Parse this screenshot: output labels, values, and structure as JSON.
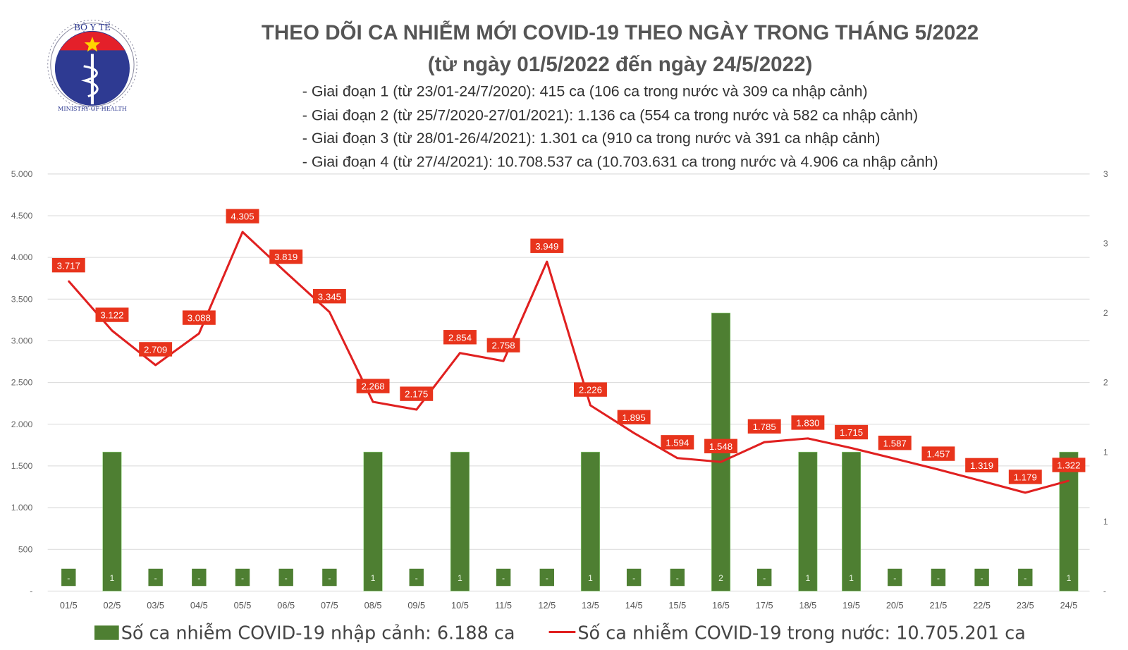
{
  "logo": {
    "top_text": "BỘ Y TẾ",
    "bottom_text": "MINISTRY OF HEALTH"
  },
  "header": {
    "title": "THEO DÕI CA NHIỄM MỚI COVID-19 THEO NGÀY TRONG THÁNG 5/2022",
    "subtitle": "(từ ngày 01/5/2022 đến ngày 24/5/2022)",
    "stages": [
      "- Giai đoạn 1 (từ 23/01-24/7/2020): 415 ca (106 ca trong nước và 309 ca nhập cảnh)",
      "- Giai đoạn 2 (từ 25/7/2020-27/01/2021): 1.136 ca (554 ca trong nước và 582 ca nhập cảnh)",
      "- Giai đoạn 3 (từ 28/01-26/4/2021): 1.301 ca (910 ca trong nước và 391 ca nhập cảnh)",
      "- Giai đoạn 4 (từ 27/4/2021): 10.708.537 ca (10.703.631 ca trong nước và 4.906 ca nhập cảnh)"
    ]
  },
  "chart_data": {
    "type": "bar+line",
    "categories": [
      "01/5",
      "02/5",
      "03/5",
      "04/5",
      "05/5",
      "06/5",
      "07/5",
      "08/5",
      "09/5",
      "10/5",
      "11/5",
      "12/5",
      "13/5",
      "14/5",
      "15/5",
      "16/5",
      "17/5",
      "18/5",
      "19/5",
      "20/5",
      "21/5",
      "22/5",
      "23/5",
      "24/5"
    ],
    "series": [
      {
        "name": "Số ca nhiễm COVID-19 nhập cảnh: 6.188 ca",
        "type": "bar",
        "axis": "right",
        "color": "#4e7f32",
        "values": [
          0,
          1,
          0,
          0,
          0,
          0,
          0,
          1,
          0,
          1,
          0,
          0,
          1,
          0,
          0,
          2,
          0,
          1,
          1,
          0,
          0,
          0,
          0,
          1
        ],
        "labels": [
          "-",
          "1",
          "-",
          "-",
          "-",
          "-",
          "-",
          "1",
          "-",
          "1",
          "-",
          "-",
          "1",
          "-",
          "-",
          "2",
          "-",
          "1",
          "1",
          "-",
          "-",
          "-",
          "-",
          "1"
        ]
      },
      {
        "name": "Số ca nhiễm COVID-19 trong nước: 10.705.201 ca",
        "type": "line",
        "axis": "left",
        "color": "#e02020",
        "values": [
          3717,
          3122,
          2709,
          3088,
          4305,
          3819,
          3345,
          2268,
          2175,
          2854,
          2758,
          3949,
          2226,
          1895,
          1594,
          1548,
          1785,
          1830,
          1715,
          1587,
          1457,
          1319,
          1179,
          1322
        ],
        "labels": [
          "3.717",
          "3.122",
          "2.709",
          "3.088",
          "4.305",
          "3.819",
          "3.345",
          "2.268",
          "2.175",
          "2.854",
          "2.758",
          "3.949",
          "2.226",
          "1.895",
          "1.594",
          "1.548",
          "1.785",
          "1.830",
          "1.715",
          "1.587",
          "1.457",
          "1.319",
          "1.179",
          "1.322"
        ]
      }
    ],
    "ylim_left": [
      0,
      5000
    ],
    "yticks_left": [
      "-",
      "500",
      "1.000",
      "1.500",
      "2.000",
      "2.500",
      "3.000",
      "3.500",
      "4.000",
      "4.500",
      "5.000"
    ],
    "ylim_right": [
      0,
      3
    ],
    "yticks_right": [
      "-",
      "1",
      "1",
      "2",
      "2",
      "3",
      "3"
    ],
    "grid": true,
    "legend_position": "bottom",
    "label_color": "#e8341c"
  }
}
